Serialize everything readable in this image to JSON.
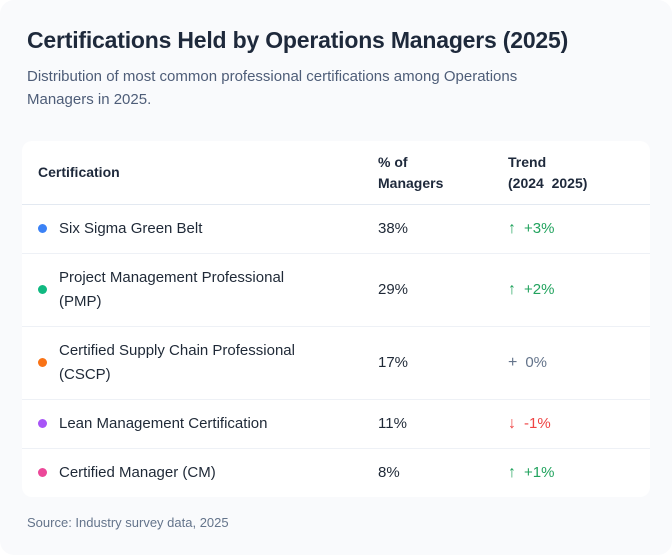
{
  "header": {
    "title": "Certifications Held by Operations Managers (2025)",
    "subtitle": "Distribution of most common professional certifications among Operations Managers in 2025."
  },
  "table": {
    "columns": [
      "Certification",
      "% of\nManagers",
      "Trend\n(2024  2025)"
    ],
    "rows": [
      {
        "certification": "Six Sigma Green Belt",
        "dot_color": "#3b82f6",
        "percent": "38%",
        "trend": {
          "icon": "↑",
          "value": "+3%",
          "direction": "up"
        }
      },
      {
        "certification": "Project Management Professional (PMP)",
        "dot_color": "#10b981",
        "percent": "29%",
        "trend": {
          "icon": "↑",
          "value": "+2%",
          "direction": "up"
        }
      },
      {
        "certification": "Certified Supply Chain Professional (CSCP)",
        "dot_color": "#f97316",
        "percent": "17%",
        "trend": {
          "icon": "+",
          "value": "0%",
          "direction": "neutral"
        }
      },
      {
        "certification": "Lean Management Certification",
        "dot_color": "#a855f7",
        "percent": "11%",
        "trend": {
          "icon": "↓",
          "value": "-1%",
          "direction": "down"
        }
      },
      {
        "certification": "Certified Manager (CM)",
        "dot_color": "#ec4899",
        "percent": "8%",
        "trend": {
          "icon": "↑",
          "value": "+1%",
          "direction": "up"
        }
      }
    ]
  },
  "footer": {
    "source": "Source: Industry survey data, 2025"
  },
  "colors": {
    "trend_up": "#22a35e",
    "trend_neutral": "#64748b",
    "trend_down": "#ef4444",
    "title_text": "#1e293b",
    "card_background": "#ffffff",
    "page_background": "#f9fafc"
  },
  "chart_data": {
    "type": "table",
    "title": "Certifications Held by Operations Managers (2025)",
    "subtitle": "Distribution of most common professional certifications among Operations Managers in 2025.",
    "columns": [
      "Certification",
      "% of Managers",
      "Trend (2024  2025)"
    ],
    "categories": [
      "Six Sigma Green Belt",
      "Project Management Professional (PMP)",
      "Certified Supply Chain Professional (CSCP)",
      "Lean Management Certification",
      "Certified Manager (CM)"
    ],
    "values": [
      38,
      29,
      17,
      11,
      8
    ],
    "trend_percent_change": [
      3,
      2,
      0,
      -1,
      1
    ],
    "source": "Source: Industry survey data, 2025"
  }
}
